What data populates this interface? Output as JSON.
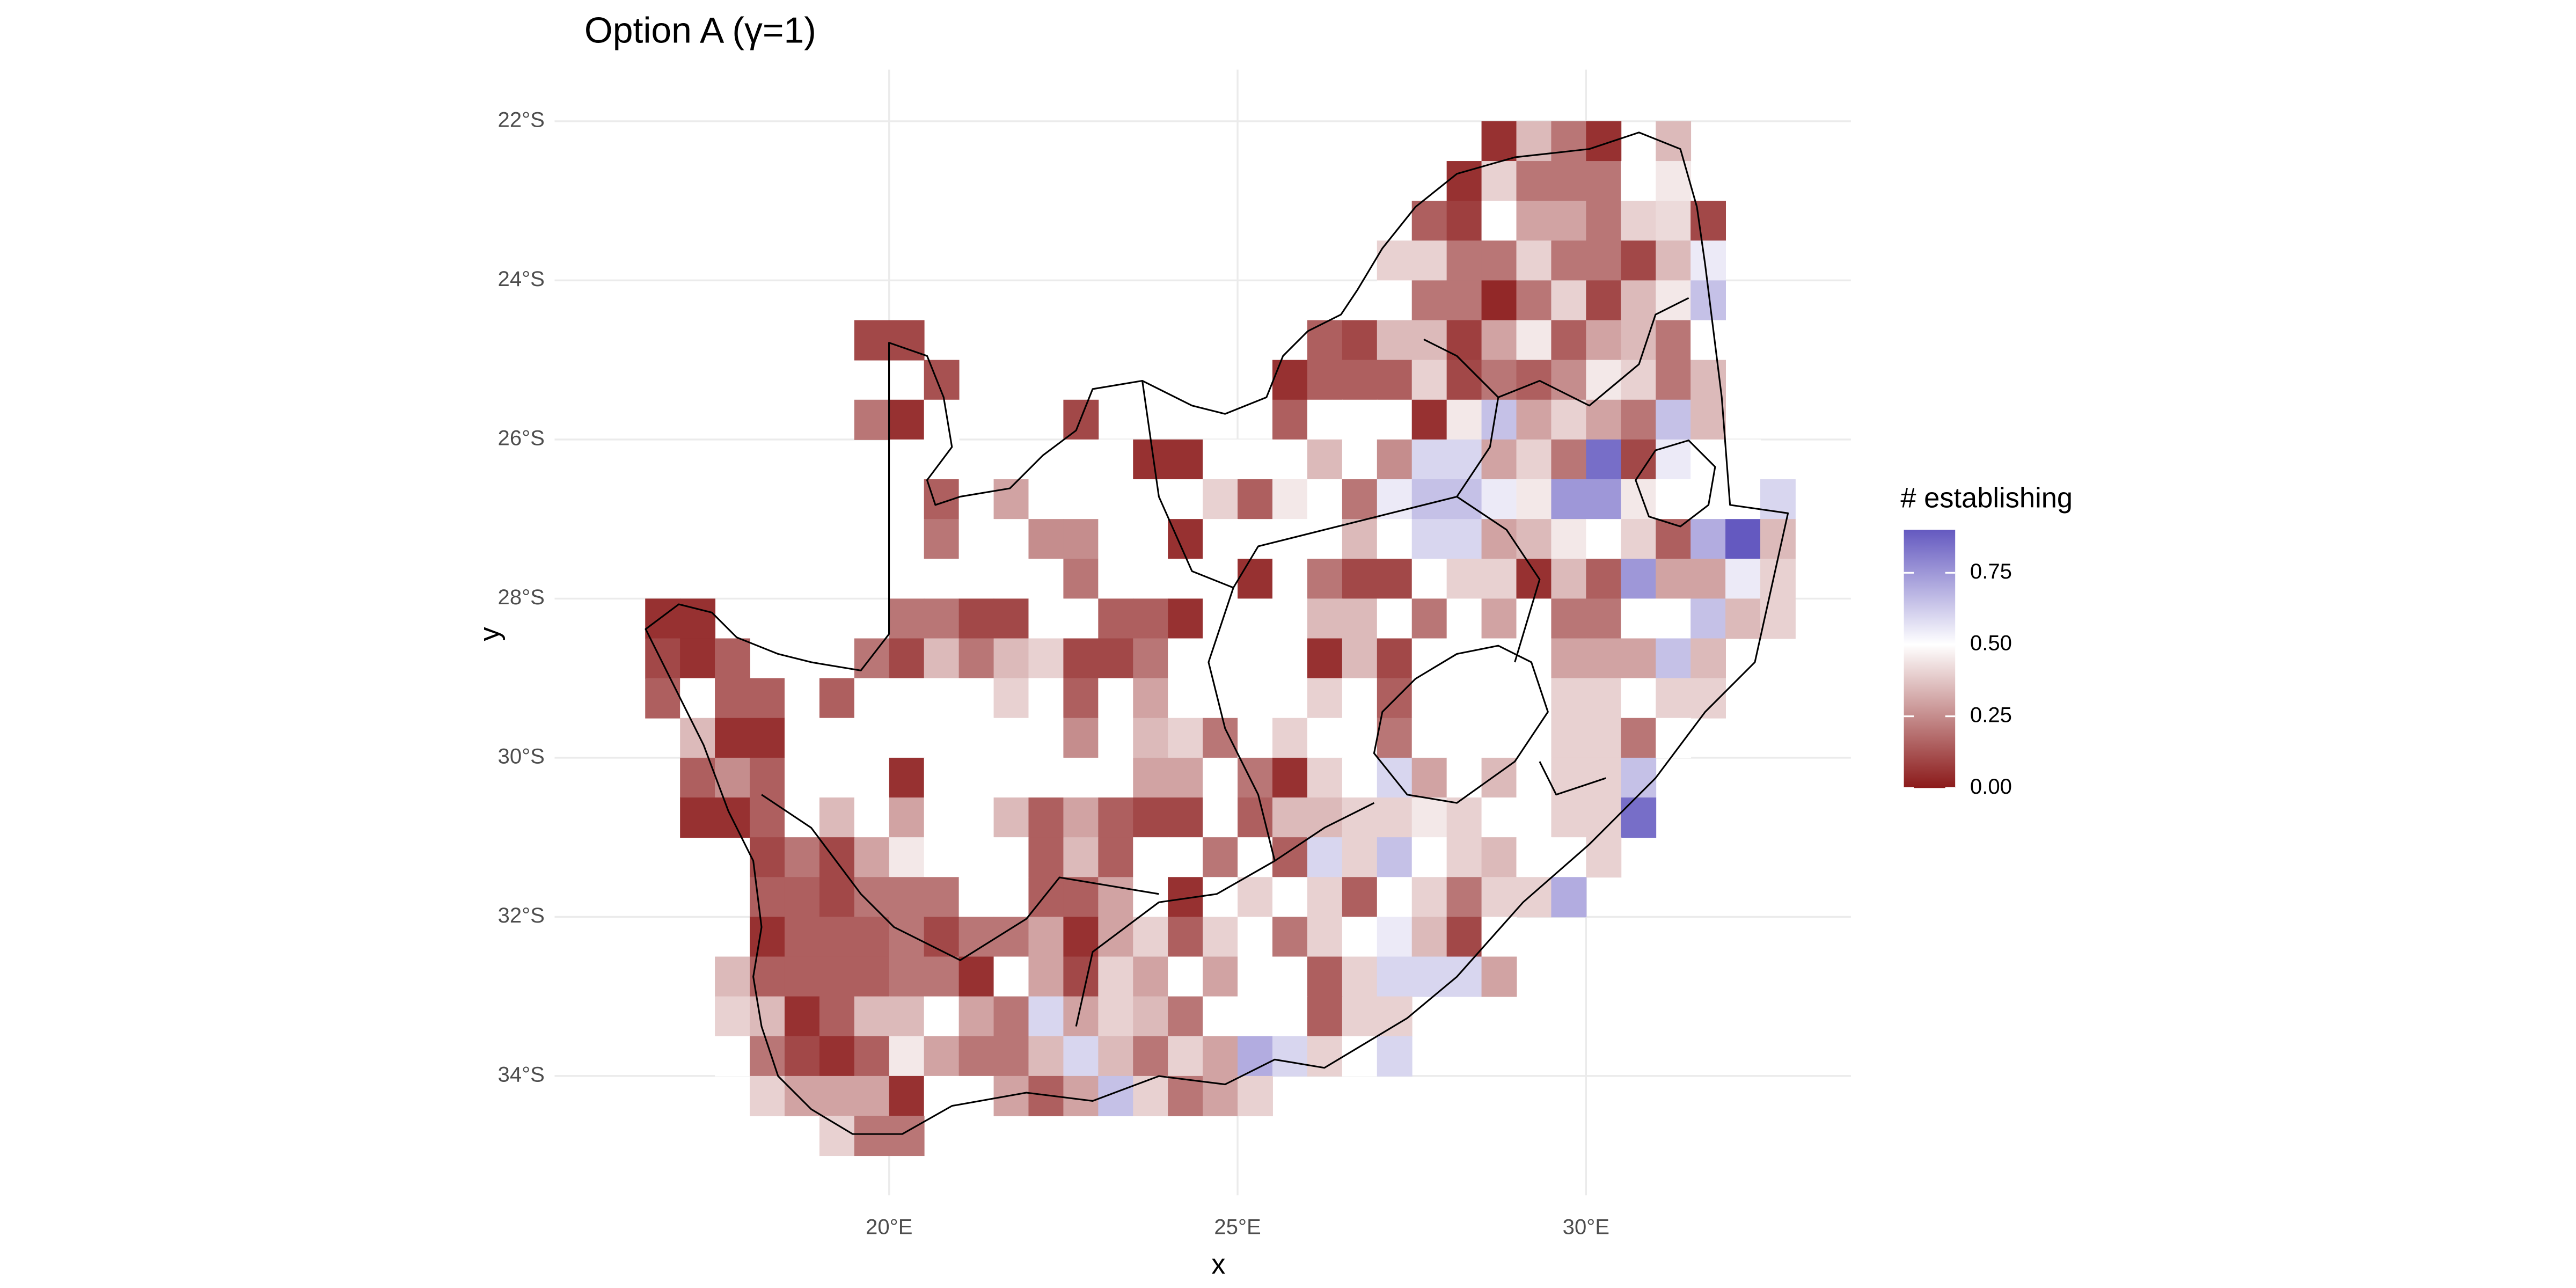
{
  "chart_data": {
    "type": "heatmap",
    "title": "Option A (γ=1)",
    "x_label": "x",
    "y_label": "y",
    "legend_title": "# establishing",
    "x": [
      16.75,
      17.25,
      17.75,
      18.25,
      18.75,
      19.25,
      19.75,
      20.25,
      20.75,
      21.25,
      21.75,
      22.25,
      22.75,
      23.25,
      23.75,
      24.25,
      24.75,
      25.25,
      25.75,
      26.25,
      26.75,
      27.25,
      27.75,
      28.25,
      28.75,
      29.25,
      29.75,
      30.25,
      30.75,
      31.25,
      31.75,
      32.25,
      32.75
    ],
    "y": [
      -22.25,
      -22.75,
      -23.25,
      -23.75,
      -24.25,
      -24.75,
      -25.25,
      -25.75,
      -26.25,
      -26.75,
      -27.25,
      -27.75,
      -28.25,
      -28.75,
      -29.25,
      -29.75,
      -30.25,
      -30.75,
      -31.25,
      -31.75,
      -32.25,
      -32.75,
      -33.25,
      -33.75,
      -34.25,
      -34.75
    ],
    "values": [
      [
        null,
        null,
        null,
        null,
        null,
        null,
        null,
        null,
        null,
        null,
        null,
        null,
        null,
        null,
        null,
        null,
        null,
        null,
        null,
        null,
        null,
        null,
        null,
        null,
        0.05,
        0.35,
        0.2,
        0.05,
        null,
        0.35,
        null,
        null,
        null
      ],
      [
        null,
        null,
        null,
        null,
        null,
        null,
        null,
        null,
        null,
        null,
        null,
        null,
        null,
        null,
        null,
        null,
        null,
        null,
        null,
        null,
        null,
        null,
        null,
        0.05,
        0.4,
        0.2,
        0.2,
        0.2,
        0.5,
        0.45,
        null,
        null,
        null
      ],
      [
        null,
        null,
        null,
        null,
        null,
        null,
        null,
        null,
        null,
        null,
        null,
        null,
        null,
        null,
        null,
        null,
        null,
        null,
        null,
        null,
        null,
        null,
        0.15,
        0.08,
        0.5,
        0.3,
        0.3,
        0.2,
        0.4,
        0.42,
        0.1,
        null,
        null
      ],
      [
        null,
        null,
        null,
        null,
        null,
        null,
        null,
        null,
        null,
        null,
        null,
        null,
        null,
        null,
        null,
        null,
        null,
        null,
        null,
        null,
        null,
        0.4,
        0.4,
        0.2,
        0.2,
        0.4,
        0.2,
        0.2,
        0.1,
        0.35,
        0.55,
        null,
        null
      ],
      [
        null,
        null,
        null,
        null,
        null,
        null,
        null,
        null,
        null,
        null,
        null,
        null,
        null,
        null,
        null,
        null,
        null,
        null,
        null,
        null,
        null,
        0.5,
        0.2,
        0.2,
        0.03,
        0.2,
        0.4,
        0.1,
        0.35,
        0.45,
        0.65,
        null,
        null
      ],
      [
        null,
        null,
        null,
        null,
        null,
        null,
        0.1,
        0.1,
        null,
        null,
        null,
        null,
        null,
        null,
        null,
        null,
        null,
        null,
        null,
        0.15,
        0.1,
        0.35,
        0.35,
        0.08,
        0.3,
        0.45,
        0.15,
        0.3,
        0.35,
        0.2,
        0.5,
        null,
        null
      ],
      [
        null,
        null,
        null,
        null,
        null,
        null,
        null,
        null,
        0.12,
        null,
        null,
        null,
        null,
        null,
        null,
        null,
        null,
        null,
        0.05,
        0.15,
        0.15,
        0.15,
        0.4,
        0.1,
        0.2,
        0.15,
        0.25,
        0.45,
        0.4,
        0.2,
        0.35,
        null,
        null
      ],
      [
        null,
        null,
        null,
        null,
        null,
        null,
        0.2,
        0.05,
        0.5,
        null,
        null,
        null,
        0.1,
        null,
        null,
        null,
        null,
        null,
        0.15,
        0.5,
        0.5,
        0.5,
        0.05,
        0.45,
        0.65,
        0.3,
        0.4,
        0.3,
        0.2,
        0.65,
        0.35,
        null,
        null
      ],
      [
        null,
        null,
        null,
        null,
        null,
        null,
        null,
        0.5,
        0.5,
        null,
        null,
        null,
        0.5,
        0.5,
        0.05,
        0.05,
        0.5,
        0.5,
        0.5,
        0.35,
        0.5,
        0.25,
        0.6,
        0.6,
        0.3,
        0.4,
        0.2,
        0.85,
        0.1,
        0.55,
        0.5,
        0.5,
        null
      ],
      [
        null,
        null,
        null,
        null,
        null,
        null,
        null,
        0.5,
        0.15,
        0.5,
        0.3,
        0.5,
        0.5,
        0.5,
        0.5,
        0.5,
        0.4,
        0.15,
        0.45,
        0.5,
        0.2,
        0.55,
        0.65,
        0.65,
        0.55,
        0.45,
        0.75,
        0.75,
        0.45,
        0.5,
        0.5,
        0.5,
        0.6
      ],
      [
        null,
        null,
        null,
        null,
        null,
        null,
        null,
        0.5,
        0.2,
        0.5,
        0.5,
        0.25,
        0.25,
        0.5,
        0.5,
        0.05,
        0.5,
        0.5,
        0.5,
        0.5,
        0.35,
        0.5,
        0.6,
        0.6,
        0.3,
        0.35,
        0.45,
        0.5,
        0.4,
        0.15,
        0.7,
        0.9,
        0.35
      ],
      [
        null,
        null,
        null,
        null,
        null,
        null,
        null,
        0.5,
        0.5,
        0.5,
        0.5,
        0.5,
        0.2,
        0.5,
        0.5,
        0.5,
        0.5,
        0.05,
        0.5,
        0.2,
        0.1,
        0.1,
        0.5,
        0.4,
        0.4,
        0.05,
        0.35,
        0.15,
        0.75,
        0.3,
        0.3,
        0.55,
        0.4
      ],
      [
        0.05,
        0.05,
        null,
        null,
        null,
        null,
        null,
        0.2,
        0.2,
        0.1,
        0.1,
        0.5,
        0.5,
        0.15,
        0.15,
        0.05,
        0.5,
        0.5,
        0.5,
        0.35,
        0.35,
        0.5,
        0.2,
        0.5,
        0.3,
        0.5,
        0.2,
        0.2,
        0.5,
        0.5,
        0.65,
        0.35,
        0.4
      ],
      [
        0.1,
        0.05,
        0.15,
        null,
        null,
        null,
        0.2,
        0.1,
        0.35,
        0.2,
        0.35,
        0.4,
        0.1,
        0.1,
        0.2,
        0.5,
        0.5,
        0.5,
        0.5,
        0.05,
        0.35,
        0.1,
        0.5,
        0.5,
        0.5,
        0.5,
        0.3,
        0.3,
        0.3,
        0.65,
        0.35,
        null,
        null
      ],
      [
        0.15,
        0.5,
        0.15,
        0.15,
        0.5,
        0.15,
        0.5,
        0.5,
        0.5,
        0.5,
        0.4,
        0.5,
        0.15,
        0.5,
        0.3,
        0.5,
        0.5,
        0.5,
        0.5,
        0.4,
        0.5,
        0.15,
        0.5,
        0.5,
        0.5,
        0.5,
        0.4,
        0.4,
        0.5,
        0.4,
        0.4,
        null,
        null
      ],
      [
        null,
        0.35,
        0.05,
        0.05,
        0.5,
        0.5,
        0.5,
        0.5,
        0.5,
        0.5,
        0.5,
        0.5,
        0.25,
        0.5,
        0.35,
        0.4,
        0.2,
        0.5,
        0.4,
        0.5,
        0.5,
        0.2,
        0.5,
        0.5,
        0.5,
        0.5,
        0.4,
        0.4,
        0.2,
        0.5,
        null,
        null,
        null
      ],
      [
        null,
        0.15,
        0.25,
        0.15,
        0.5,
        0.5,
        0.5,
        0.05,
        0.5,
        0.5,
        0.5,
        0.5,
        0.5,
        0.5,
        0.3,
        0.3,
        0.5,
        0.2,
        0.05,
        0.4,
        0.5,
        0.6,
        0.3,
        0.5,
        0.35,
        0.5,
        0.4,
        0.4,
        0.65,
        null,
        null,
        null,
        null
      ],
      [
        null,
        0.05,
        0.05,
        0.15,
        0.5,
        0.35,
        0.5,
        0.3,
        0.5,
        0.5,
        0.35,
        0.15,
        0.3,
        0.15,
        0.1,
        0.1,
        0.5,
        0.15,
        0.35,
        0.35,
        0.4,
        0.4,
        0.45,
        0.4,
        0.5,
        0.5,
        0.4,
        0.4,
        0.85,
        null,
        null,
        null,
        null
      ],
      [
        null,
        null,
        null,
        0.1,
        0.2,
        0.1,
        0.3,
        0.45,
        0.5,
        0.5,
        0.5,
        0.15,
        0.35,
        0.15,
        0.5,
        0.5,
        0.2,
        0.5,
        0.15,
        0.6,
        0.4,
        0.65,
        0.5,
        0.4,
        0.35,
        0.5,
        0.5,
        0.4,
        null,
        null,
        null,
        null,
        null
      ],
      [
        null,
        null,
        null,
        0.15,
        0.15,
        0.1,
        0.2,
        0.2,
        0.2,
        0.5,
        0.5,
        0.15,
        0.15,
        0.3,
        0.5,
        0.05,
        0.5,
        0.4,
        0.5,
        0.4,
        0.15,
        0.5,
        0.4,
        0.2,
        0.4,
        0.4,
        0.7,
        null,
        null,
        null,
        null,
        null,
        null
      ],
      [
        null,
        null,
        null,
        0.05,
        0.15,
        0.15,
        0.15,
        0.2,
        0.1,
        0.2,
        0.2,
        0.3,
        0.05,
        0.3,
        0.4,
        0.15,
        0.4,
        0.5,
        0.2,
        0.4,
        0.5,
        0.55,
        0.35,
        0.1,
        0.5,
        null,
        null,
        null,
        null,
        null,
        null,
        null,
        null
      ],
      [
        null,
        null,
        0.35,
        0.15,
        0.15,
        0.15,
        0.15,
        0.2,
        0.2,
        0.05,
        0.5,
        0.3,
        0.1,
        0.4,
        0.3,
        0.5,
        0.3,
        0.5,
        0.5,
        0.15,
        0.4,
        0.6,
        0.6,
        0.6,
        0.3,
        null,
        null,
        null,
        null,
        null,
        null,
        null,
        null
      ],
      [
        null,
        null,
        0.4,
        0.35,
        0.05,
        0.15,
        0.35,
        0.35,
        0.5,
        0.3,
        0.2,
        0.6,
        0.3,
        0.4,
        0.35,
        0.2,
        0.5,
        0.5,
        0.5,
        0.15,
        0.4,
        0.4,
        null,
        null,
        null,
        null,
        null,
        null,
        null,
        null,
        null,
        null,
        null
      ],
      [
        null,
        null,
        0.5,
        0.2,
        0.1,
        0.05,
        0.15,
        0.45,
        0.3,
        0.2,
        0.2,
        0.35,
        0.6,
        0.35,
        0.2,
        0.4,
        0.3,
        0.7,
        0.6,
        0.4,
        0.5,
        0.6,
        null,
        null,
        null,
        null,
        null,
        null,
        null,
        null,
        null,
        null,
        null
      ],
      [
        null,
        null,
        null,
        0.4,
        0.3,
        0.3,
        0.3,
        0.05,
        0.5,
        0.5,
        0.3,
        0.15,
        0.3,
        0.65,
        0.4,
        0.2,
        0.3,
        0.4,
        null,
        null,
        null,
        null,
        null,
        null,
        null,
        null,
        null,
        null,
        null,
        null,
        null,
        null,
        null
      ],
      [
        null,
        null,
        null,
        null,
        null,
        0.4,
        0.2,
        0.2,
        null,
        null,
        null,
        null,
        null,
        null,
        null,
        null,
        null,
        null,
        null,
        null,
        null,
        null,
        null,
        null,
        null,
        null,
        null,
        null,
        null,
        null,
        null,
        null,
        null
      ]
    ],
    "xlim": [
      15.2,
      33.8
    ],
    "ylim": [
      -35.5,
      -21.35
    ],
    "xticks": [
      {
        "value": 20,
        "label": "20°E"
      },
      {
        "value": 25,
        "label": "25°E"
      },
      {
        "value": 30,
        "label": "30°E"
      }
    ],
    "yticks": [
      {
        "value": -22,
        "label": "22°S"
      },
      {
        "value": -24,
        "label": "24°S"
      },
      {
        "value": -26,
        "label": "26°S"
      },
      {
        "value": -28,
        "label": "28°S"
      },
      {
        "value": -30,
        "label": "30°S"
      },
      {
        "value": -32,
        "label": "32°S"
      },
      {
        "value": -34,
        "label": "34°S"
      }
    ],
    "clim": [
      0,
      0.9
    ],
    "midpoint": 0.5,
    "low_color": "#8b1a1a",
    "mid_color": "#ffffff",
    "high_color": "#6459c0",
    "legend_ticks": [
      {
        "value": 0,
        "label": "0.00"
      },
      {
        "value": 0.25,
        "label": "0.25"
      },
      {
        "value": 0.5,
        "label": "0.50"
      },
      {
        "value": 0.75,
        "label": "0.75"
      }
    ],
    "grid": true
  }
}
